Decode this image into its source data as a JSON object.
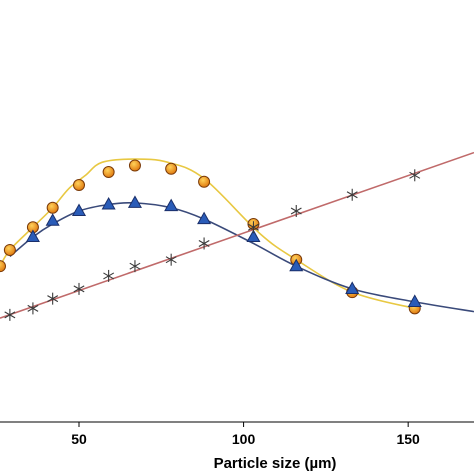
{
  "chart_data": {
    "type": "line",
    "title": "",
    "xlabel": "Particle size (µm)",
    "ylabel": "",
    "xlim": [
      26,
      170
    ],
    "ylim": [
      0,
      1.3
    ],
    "x_ticks": [
      50,
      100,
      150
    ],
    "x_tick_labels": [
      "50",
      "100",
      "150"
    ],
    "grid": false,
    "legend": "none",
    "series": [
      {
        "marker": "circle",
        "line_color": "#e8c842",
        "marker_fill": "#e07a10",
        "marker_stroke": "#7a3a08",
        "points": [
          [
            26,
            0.48
          ],
          [
            29,
            0.53
          ],
          [
            36,
            0.6
          ],
          [
            42,
            0.66
          ],
          [
            47,
            0.72
          ],
          [
            52,
            0.76
          ],
          [
            57,
            0.8
          ],
          [
            67,
            0.81
          ],
          [
            77,
            0.8
          ],
          [
            88,
            0.75
          ],
          [
            105,
            0.58
          ],
          [
            116,
            0.5
          ],
          [
            133,
            0.4
          ],
          [
            152,
            0.35
          ]
        ],
        "marker_points": [
          [
            26,
            0.48
          ],
          [
            29,
            0.53
          ],
          [
            36,
            0.6
          ],
          [
            42,
            0.66
          ],
          [
            50,
            0.73
          ],
          [
            59,
            0.77
          ],
          [
            67,
            0.79
          ],
          [
            78,
            0.78
          ],
          [
            88,
            0.74
          ],
          [
            103,
            0.61
          ],
          [
            116,
            0.5
          ],
          [
            133,
            0.4
          ],
          [
            152,
            0.35
          ]
        ]
      },
      {
        "marker": "triangle",
        "line_color": "#3a4a7a",
        "marker_fill": "#2a5cb8",
        "marker_stroke": "#1a2f6a",
        "points": [
          [
            29,
            0.51
          ],
          [
            36,
            0.57
          ],
          [
            42,
            0.61
          ],
          [
            50,
            0.65
          ],
          [
            59,
            0.67
          ],
          [
            67,
            0.675
          ],
          [
            78,
            0.66
          ],
          [
            88,
            0.625
          ],
          [
            103,
            0.55
          ],
          [
            116,
            0.48
          ],
          [
            133,
            0.41
          ],
          [
            152,
            0.37
          ],
          [
            170,
            0.34
          ]
        ],
        "marker_points": [
          [
            36,
            0.57
          ],
          [
            42,
            0.62
          ],
          [
            50,
            0.65
          ],
          [
            59,
            0.67
          ],
          [
            67,
            0.675
          ],
          [
            78,
            0.665
          ],
          [
            88,
            0.625
          ],
          [
            103,
            0.57
          ],
          [
            116,
            0.48
          ],
          [
            133,
            0.41
          ],
          [
            152,
            0.37
          ]
        ]
      },
      {
        "marker": "asterisk",
        "line_color": "#c06a6a",
        "marker_stroke": "#3a3a3a",
        "points": [
          [
            26,
            0.32
          ],
          [
            170,
            0.83
          ]
        ],
        "marker_points": [
          [
            29,
            0.33
          ],
          [
            36,
            0.35
          ],
          [
            42,
            0.38
          ],
          [
            50,
            0.41
          ],
          [
            59,
            0.45
          ],
          [
            67,
            0.48
          ],
          [
            78,
            0.5
          ],
          [
            88,
            0.55
          ],
          [
            103,
            0.6
          ],
          [
            116,
            0.65
          ],
          [
            133,
            0.7
          ],
          [
            152,
            0.76
          ]
        ]
      }
    ]
  }
}
